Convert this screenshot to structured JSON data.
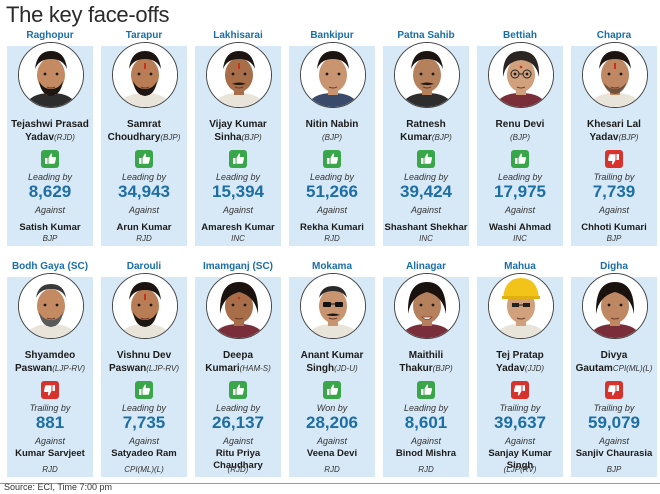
{
  "title": "The key face-offs",
  "source": "Source: ECI, Time 7:00 pm",
  "colors": {
    "accent": "#1d6ea5",
    "panel": "#d7e9f6",
    "win": "#3aa64a",
    "loss": "#d8322d"
  },
  "rows": [
    [
      {
        "constituency": "Raghopur",
        "name_line1": "Tejashwi Prasad",
        "name_line2": "Yadav",
        "party": "(RJD)",
        "result": "win",
        "status": "Leading by",
        "margin": "8,629",
        "against": "Against",
        "opponent": "Satish Kumar",
        "opponent_party": "BJP",
        "face": "beard-dark"
      },
      {
        "constituency": "Tarapur",
        "name_line1": "Samrat",
        "name_line2": "Choudhary",
        "party": "(BJP)",
        "result": "win",
        "status": "Leading by",
        "margin": "34,943",
        "against": "Against",
        "opponent": "Arun Kumar",
        "opponent_party": "RJD",
        "face": "beard-tilak"
      },
      {
        "constituency": "Lakhisarai",
        "name_line1": "Vijay Kumar",
        "name_line2": "Sinha",
        "party": "(BJP)",
        "result": "win",
        "status": "Leading by",
        "margin": "15,394",
        "against": "Against",
        "opponent": "Amaresh Kumar",
        "opponent_party": "INC",
        "face": "mustache-tilak"
      },
      {
        "constituency": "Bankipur",
        "name_line1": "Nitin Nabin",
        "name_line2": "",
        "party": "(BJP)",
        "result": "win",
        "status": "Leading by",
        "margin": "51,266",
        "against": "Against",
        "opponent": "Rekha Kumari",
        "opponent_party": "RJD",
        "face": "round"
      },
      {
        "constituency": "Patna Sahib",
        "name_line1": "Ratnesh",
        "name_line2": "Kumar",
        "party": "(BJP)",
        "result": "win",
        "status": "Leading by",
        "margin": "39,424",
        "against": "Against",
        "opponent": "Shashant Shekhar",
        "opponent_party": "INC",
        "face": "mustache"
      },
      {
        "constituency": "Bettiah",
        "name_line1": "Renu Devi",
        "name_line2": "",
        "party": "(BJP)",
        "result": "win",
        "status": "Leading by",
        "margin": "17,975",
        "against": "Against",
        "opponent": "Washi Ahmad",
        "opponent_party": "INC",
        "face": "woman-glasses"
      },
      {
        "constituency": "Chapra",
        "name_line1": "Khesari Lal",
        "name_line2": "Yadav",
        "party": "(BJP)",
        "result": "loss",
        "status": "Trailing by",
        "margin": "7,739",
        "against": "Against",
        "opponent": "Chhoti Kumari",
        "opponent_party": "BJP",
        "face": "stubble-tilak"
      }
    ],
    [
      {
        "constituency": "Bodh Gaya (SC)",
        "name_line1": "Shyamdeo",
        "name_line2": "Paswan",
        "party": "(LJP-RV)",
        "result": "loss",
        "status": "Trailing by",
        "margin": "881",
        "against": "Against",
        "opponent": "Kumar Sarvjeet",
        "opponent_party": "RJD",
        "face": "beard-grey"
      },
      {
        "constituency": "Darouli",
        "name_line1": "Vishnu Dev",
        "name_line2": "Paswan",
        "party": "(LJP-RV)",
        "result": "win",
        "status": "Leading by",
        "margin": "7,735",
        "against": "Against",
        "opponent": "Satyadeo Ram",
        "opponent_party": "CPI(ML)(L)",
        "face": "beard-tilak"
      },
      {
        "constituency": "Imamganj (SC)",
        "name_line1": "Deepa",
        "name_line2": "Kumari",
        "party": "(HAM-S)",
        "result": "win",
        "status": "Leading by",
        "margin": "26,137",
        "against": "Against",
        "opponent": "Ritu Priya Chaudhary",
        "opponent_party": "(RJD)",
        "face": "woman-bindi"
      },
      {
        "constituency": "Mokama",
        "name_line1": "Anant Kumar",
        "name_line2": "Singh",
        "party": "(JD-U)",
        "result": "win",
        "status": "Won by",
        "margin": "28,206",
        "against": "Against",
        "opponent": "Veena Devi",
        "opponent_party": "RJD",
        "face": "sunglasses"
      },
      {
        "constituency": "Alinagar",
        "name_line1": "Maithili",
        "name_line2": "Thakur",
        "party": "(BJP)",
        "result": "win",
        "status": "Leading by",
        "margin": "8,601",
        "against": "Against",
        "opponent": "Binod Mishra",
        "opponent_party": "RJD",
        "face": "woman-smile"
      },
      {
        "constituency": "Mahua",
        "name_line1": "Tej Pratap",
        "name_line2": "Yadav",
        "party": "(JJD)",
        "result": "loss",
        "status": "Trailing by",
        "margin": "39,637",
        "against": "Against",
        "opponent": "Sanjay Kumar Singh",
        "opponent_party": "(LJP(RV)",
        "face": "yellow-cap"
      },
      {
        "constituency": "Digha",
        "name_line1": "Divya",
        "name_line2": "Gautam",
        "party": "CPI(ML)(L)",
        "result": "loss",
        "status": "Trailing by",
        "margin": "59,079",
        "against": "Against",
        "opponent": "Sanjiv Chaurasia",
        "opponent_party": "BJP",
        "face": "woman-plain"
      }
    ]
  ]
}
